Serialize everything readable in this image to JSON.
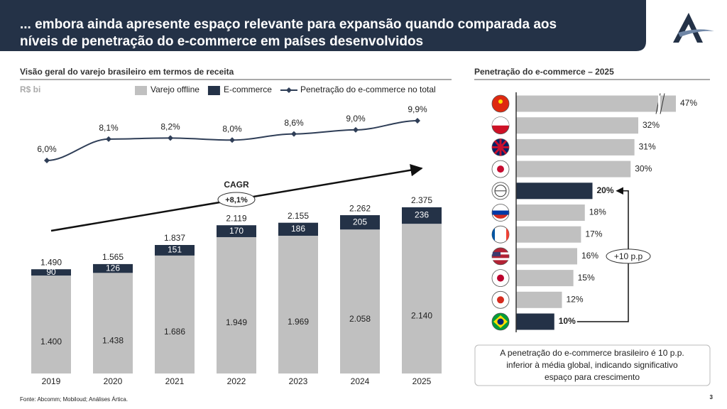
{
  "header": {
    "title": [
      "... embora ainda apresente espaço relevante para expansão quando comparada aos",
      "níveis de penetração do e-commerce em países desenvolvidos"
    ]
  },
  "chart_data": [
    {
      "type": "stacked-bar-line",
      "title": "Visão geral do varejo brasileiro em termos de receita",
      "unit": "R$ bi",
      "categories": [
        "2019",
        "2020",
        "2021",
        "2022",
        "2023",
        "2024",
        "2025"
      ],
      "series": [
        {
          "name": "Varejo offline",
          "color": "#c0c0c0",
          "values": [
            1400,
            1438,
            1686,
            1949,
            1969,
            2058,
            2140
          ],
          "value_labels": [
            "1.400",
            "1.438",
            "1.686",
            "1.949",
            "1.969",
            "2.058",
            "2.140"
          ]
        },
        {
          "name": "E-commerce",
          "color": "#243247",
          "values": [
            90,
            126,
            151,
            170,
            186,
            205,
            236
          ]
        },
        {
          "name": "Penetração do e-commerce no total",
          "color": "#2f3e57",
          "type": "line",
          "values": [
            6.0,
            8.1,
            8.2,
            8.0,
            8.6,
            9.0,
            9.9
          ],
          "value_labels": [
            "6,0%",
            "8,1%",
            "8,2%",
            "8,0%",
            "8,6%",
            "9,0%",
            "9,9%"
          ]
        }
      ],
      "totals": {
        "values": [
          1490,
          1565,
          1837,
          2119,
          2155,
          2262,
          2375
        ],
        "value_labels": [
          "1.490",
          "1.565",
          "1.837",
          "2.119",
          "2.155",
          "2.262",
          "2.375"
        ]
      },
      "annotation": {
        "title": "CAGR",
        "text": "+8,1%"
      }
    },
    {
      "type": "hbar",
      "title": "Penetração do e-commerce – 2025",
      "categories": [
        null,
        null,
        null,
        null,
        null,
        null,
        null,
        null,
        null,
        null,
        null
      ],
      "values": [
        47,
        32,
        31,
        30,
        20,
        18,
        17,
        16,
        15,
        12,
        10
      ],
      "value_labels": [
        "47%",
        "32%",
        "31%",
        "30%",
        "20%",
        "18%",
        "17%",
        "16%",
        "15%",
        "12%",
        "10%"
      ],
      "colors": [
        "#c0c0c0",
        "#c0c0c0",
        "#c0c0c0",
        "#c0c0c0",
        "#243247",
        "#c0c0c0",
        "#c0c0c0",
        "#c0c0c0",
        "#c0c0c0",
        "#c0c0c0",
        "#243247"
      ],
      "axis_break": true,
      "annotation": "+10 p.p"
    }
  ],
  "note": [
    "A penetração do e-commerce brasileiro é 10 p.p.",
    "inferior à média global, indicando significativo",
    "espaço para crescimento"
  ],
  "source": "Fonte: Abcomm; Mobiloud; Análises Ártica.",
  "page_number": "3"
}
